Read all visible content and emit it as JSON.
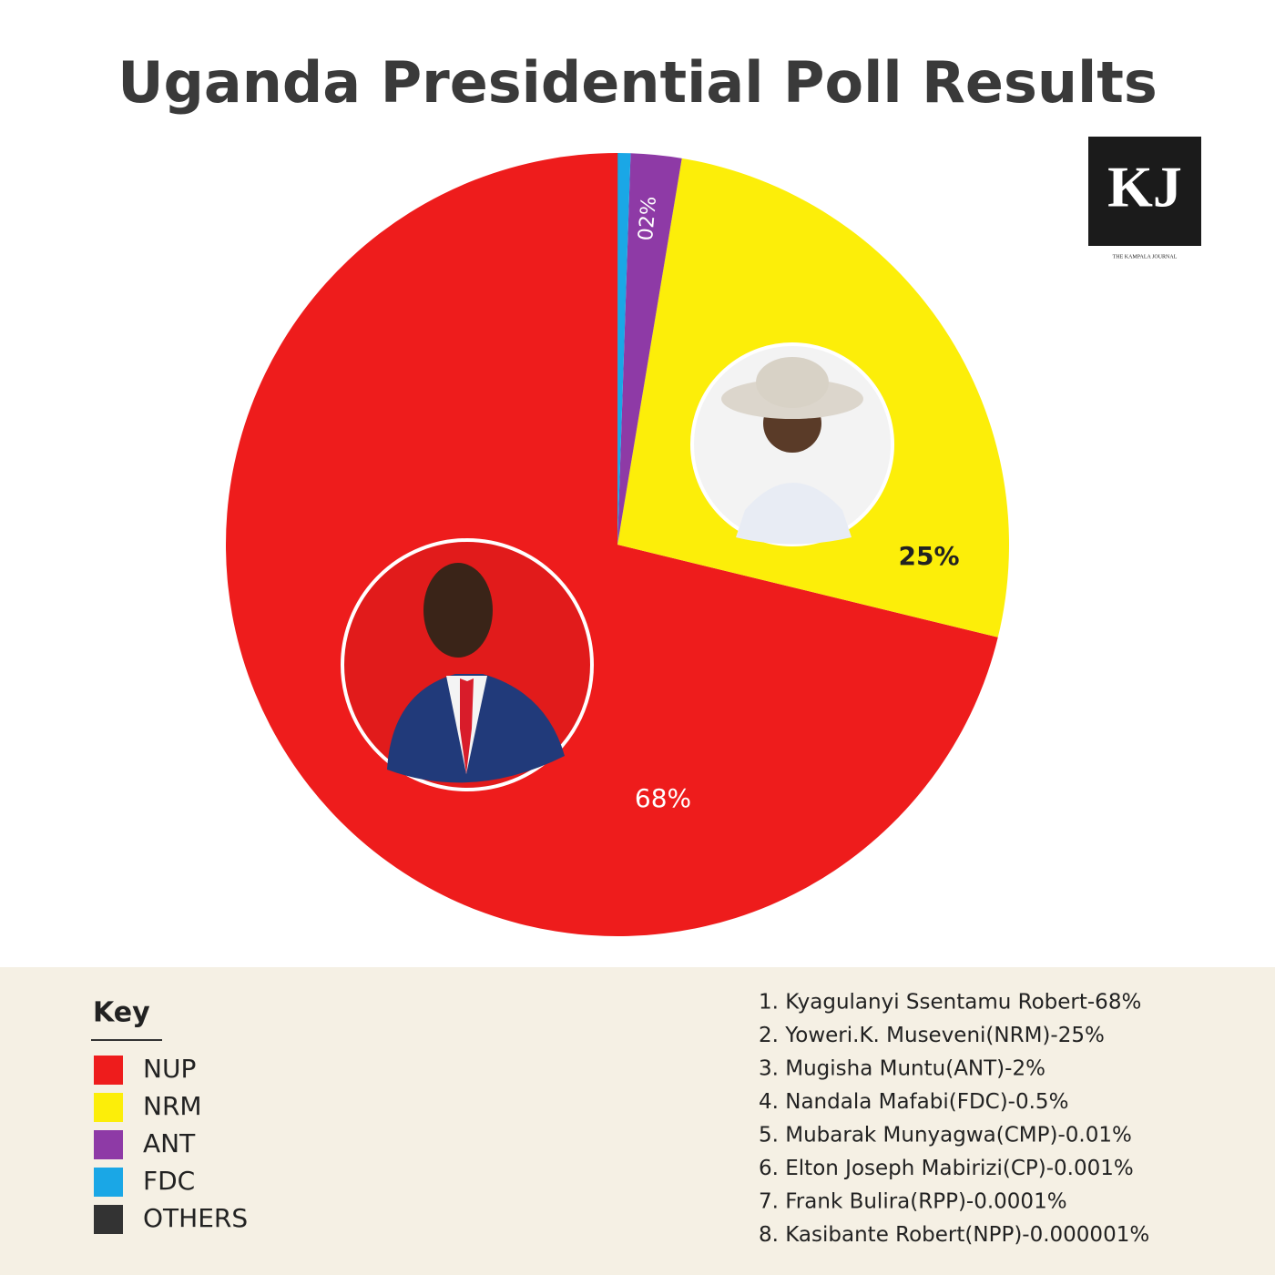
{
  "chart_data": {
    "type": "pie",
    "title": "Uganda Presidential Poll Results",
    "logo": {
      "text": "KJ",
      "caption": "THE KAMPALA JOURNAL"
    },
    "categories": [
      "NUP",
      "NRM",
      "ANT",
      "FDC",
      "OTHERS"
    ],
    "values": [
      68,
      25,
      2,
      0.5,
      0.011101
    ],
    "value_labels": [
      "68%",
      "25%",
      "02%",
      null,
      null
    ],
    "colors": [
      "#ee1c1c",
      "#fcee09",
      "#8e3aa6",
      "#1aa7e6",
      "#333333"
    ],
    "legend_title": "Key",
    "results_list": [
      "1. Kyagulanyi Ssentamu Robert-68%",
      "2. Yoweri.K. Museveni(NRM)-25%",
      "3. Mugisha Muntu(ANT)-2%",
      "4. Nandala Mafabi(FDC)-0.5%",
      "5. Mubarak Munyagwa(CMP)-0.01%",
      "6. Elton Joseph Mabirizi(CP)-0.001%",
      "7. Frank Bulira(RPP)-0.0001%",
      "8. Kasibante Robert(NPP)-0.000001%"
    ]
  }
}
